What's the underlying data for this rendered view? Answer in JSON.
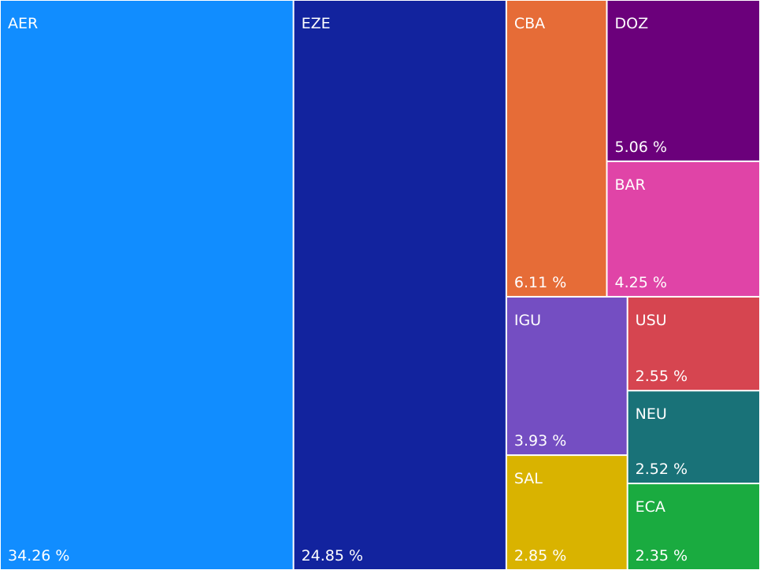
{
  "chart_data": {
    "type": "treemap",
    "categories": [
      "AER",
      "EZE",
      "CBA",
      "DOZ",
      "BAR",
      "IGU",
      "SAL",
      "USU",
      "NEU",
      "ECA"
    ],
    "values": [
      34.26,
      24.85,
      6.11,
      5.06,
      4.25,
      3.93,
      2.85,
      2.55,
      2.52,
      2.35
    ],
    "value_labels": [
      "34.26 %",
      "24.85 %",
      "6.11 %",
      "5.06 %",
      "4.25 %",
      "3.93 %",
      "2.85 %",
      "2.55 %",
      "2.52 %",
      "2.35 %"
    ],
    "colors": [
      "#118dff",
      "#12239e",
      "#e66c37",
      "#6b007b",
      "#e044a7",
      "#744ec2",
      "#d9b300",
      "#d64550",
      "#197278",
      "#1aab40"
    ]
  }
}
